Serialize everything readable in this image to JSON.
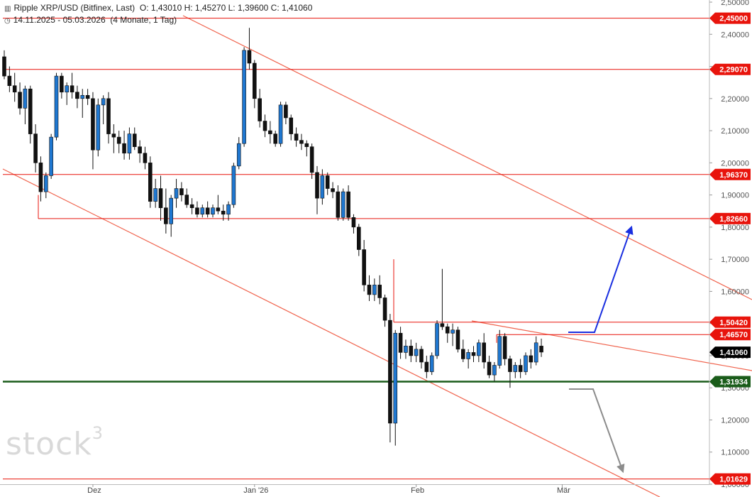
{
  "header": {
    "instrument": "Ripple XRP/USD (Bitfinex, Last)",
    "ohlc": "O: 1,43010  H: 1,45270  L: 1,39600  C: 1,41060",
    "range": "14.11.2025 - 05.03.2026",
    "period": "(4 Monate, 1 Tag)",
    "chart_icon": "chart-bars-icon",
    "time_icon": "clock-icon"
  },
  "watermark": {
    "text": "stock",
    "sup": "3"
  },
  "colors": {
    "up": "#1f77d0",
    "down": "#111111",
    "resistance": "#e8140c",
    "support": "#1a5c1a",
    "trend": "#f0644e",
    "arrow_up": "#1a2fe0",
    "arrow_down": "#8c8c8c",
    "price_tag": "#000000"
  },
  "chart_data": {
    "type": "candlestick",
    "ylim": [
      1.0,
      2.5
    ],
    "y_ticks": [
      "2,50000",
      "2,40000",
      "2,30000",
      "2,20000",
      "2,10000",
      "2,00000",
      "1,90000",
      "1,80000",
      "1,70000",
      "1,60000",
      "1,50000",
      "1,40000",
      "1,30000",
      "1,20000",
      "1,10000",
      "1,00000"
    ],
    "y_tick_values": [
      2.5,
      2.4,
      2.3,
      2.2,
      2.1,
      2.0,
      1.9,
      1.8,
      1.7,
      1.6,
      1.5,
      1.4,
      1.3,
      1.2,
      1.1,
      1.0
    ],
    "x_labels": [
      {
        "label": "Dez",
        "date": "2025-12-01"
      },
      {
        "label": "Jan '26",
        "date": "2026-01-01"
      },
      {
        "label": "Feb",
        "date": "2026-02-01"
      },
      {
        "label": "Mär",
        "date": "2026-03-01"
      }
    ],
    "levels": [
      {
        "label": "2,45000",
        "value": 2.45,
        "kind": "resistance"
      },
      {
        "label": "2,29070",
        "value": 2.2907,
        "kind": "resistance"
      },
      {
        "label": "1,96370",
        "value": 1.9637,
        "kind": "resistance"
      },
      {
        "label": "1,82660",
        "value": 1.8266,
        "kind": "resistance"
      },
      {
        "label": "1,50420",
        "value": 1.5042,
        "kind": "resistance"
      },
      {
        "label": "1,46570",
        "value": 1.4657,
        "kind": "resistance"
      },
      {
        "label": "1,31934",
        "value": 1.31934,
        "kind": "support"
      },
      {
        "label": "1,01629",
        "value": 1.01629,
        "kind": "resistance"
      }
    ],
    "last_price": {
      "label": "1,41060",
      "value": 1.4106
    },
    "candles": [
      {
        "o": 2.33,
        "h": 2.35,
        "l": 2.26,
        "c": 2.27
      },
      {
        "o": 2.27,
        "h": 2.3,
        "l": 2.22,
        "c": 2.24
      },
      {
        "o": 2.24,
        "h": 2.28,
        "l": 2.19,
        "c": 2.22
      },
      {
        "o": 2.22,
        "h": 2.25,
        "l": 2.15,
        "c": 2.17
      },
      {
        "o": 2.17,
        "h": 2.24,
        "l": 2.12,
        "c": 2.23
      },
      {
        "o": 2.23,
        "h": 2.24,
        "l": 2.06,
        "c": 2.09
      },
      {
        "o": 2.09,
        "h": 2.12,
        "l": 1.97,
        "c": 2.0
      },
      {
        "o": 2.0,
        "h": 2.02,
        "l": 1.88,
        "c": 1.91
      },
      {
        "o": 1.91,
        "h": 1.97,
        "l": 1.89,
        "c": 1.96
      },
      {
        "o": 1.96,
        "h": 2.09,
        "l": 1.95,
        "c": 2.08
      },
      {
        "o": 2.08,
        "h": 2.28,
        "l": 2.07,
        "c": 2.27
      },
      {
        "o": 2.27,
        "h": 2.28,
        "l": 2.2,
        "c": 2.22
      },
      {
        "o": 2.22,
        "h": 2.25,
        "l": 2.18,
        "c": 2.24
      },
      {
        "o": 2.24,
        "h": 2.28,
        "l": 2.2,
        "c": 2.22
      },
      {
        "o": 2.22,
        "h": 2.24,
        "l": 2.17,
        "c": 2.2
      },
      {
        "o": 2.2,
        "h": 2.23,
        "l": 2.14,
        "c": 2.21
      },
      {
        "o": 2.21,
        "h": 2.23,
        "l": 2.18,
        "c": 2.2
      },
      {
        "o": 2.2,
        "h": 2.22,
        "l": 1.98,
        "c": 2.04
      },
      {
        "o": 2.04,
        "h": 2.2,
        "l": 2.02,
        "c": 2.18
      },
      {
        "o": 2.18,
        "h": 2.21,
        "l": 2.12,
        "c": 2.2
      },
      {
        "o": 2.2,
        "h": 2.22,
        "l": 2.06,
        "c": 2.09
      },
      {
        "o": 2.09,
        "h": 2.12,
        "l": 2.03,
        "c": 2.08
      },
      {
        "o": 2.08,
        "h": 2.1,
        "l": 2.03,
        "c": 2.06
      },
      {
        "o": 2.06,
        "h": 2.1,
        "l": 2.01,
        "c": 2.03
      },
      {
        "o": 2.03,
        "h": 2.11,
        "l": 2.01,
        "c": 2.09
      },
      {
        "o": 2.09,
        "h": 2.11,
        "l": 2.04,
        "c": 2.05
      },
      {
        "o": 2.05,
        "h": 2.07,
        "l": 2.0,
        "c": 2.03
      },
      {
        "o": 2.03,
        "h": 2.05,
        "l": 1.98,
        "c": 2.0
      },
      {
        "o": 2.0,
        "h": 2.02,
        "l": 1.86,
        "c": 1.88
      },
      {
        "o": 1.88,
        "h": 1.95,
        "l": 1.86,
        "c": 1.92
      },
      {
        "o": 1.92,
        "h": 1.96,
        "l": 1.82,
        "c": 1.86
      },
      {
        "o": 1.86,
        "h": 1.92,
        "l": 1.78,
        "c": 1.81
      },
      {
        "o": 1.81,
        "h": 1.9,
        "l": 1.77,
        "c": 1.89
      },
      {
        "o": 1.89,
        "h": 1.95,
        "l": 1.86,
        "c": 1.92
      },
      {
        "o": 1.92,
        "h": 1.94,
        "l": 1.88,
        "c": 1.9
      },
      {
        "o": 1.9,
        "h": 1.92,
        "l": 1.86,
        "c": 1.87
      },
      {
        "o": 1.87,
        "h": 1.89,
        "l": 1.84,
        "c": 1.86
      },
      {
        "o": 1.86,
        "h": 1.88,
        "l": 1.83,
        "c": 1.84
      },
      {
        "o": 1.84,
        "h": 1.87,
        "l": 1.83,
        "c": 1.86
      },
      {
        "o": 1.86,
        "h": 1.88,
        "l": 1.83,
        "c": 1.84
      },
      {
        "o": 1.84,
        "h": 1.87,
        "l": 1.83,
        "c": 1.86
      },
      {
        "o": 1.86,
        "h": 1.9,
        "l": 1.84,
        "c": 1.85
      },
      {
        "o": 1.85,
        "h": 1.87,
        "l": 1.82,
        "c": 1.84
      },
      {
        "o": 1.84,
        "h": 1.88,
        "l": 1.82,
        "c": 1.87
      },
      {
        "o": 1.87,
        "h": 2.0,
        "l": 1.86,
        "c": 1.99
      },
      {
        "o": 1.99,
        "h": 2.08,
        "l": 1.98,
        "c": 2.06
      },
      {
        "o": 2.06,
        "h": 2.36,
        "l": 2.05,
        "c": 2.35
      },
      {
        "o": 2.35,
        "h": 2.42,
        "l": 2.29,
        "c": 2.31
      },
      {
        "o": 2.31,
        "h": 2.32,
        "l": 2.17,
        "c": 2.2
      },
      {
        "o": 2.2,
        "h": 2.23,
        "l": 2.11,
        "c": 2.13
      },
      {
        "o": 2.13,
        "h": 2.15,
        "l": 2.08,
        "c": 2.1
      },
      {
        "o": 2.1,
        "h": 2.13,
        "l": 2.06,
        "c": 2.09
      },
      {
        "o": 2.09,
        "h": 2.1,
        "l": 2.05,
        "c": 2.06
      },
      {
        "o": 2.06,
        "h": 2.19,
        "l": 2.05,
        "c": 2.18
      },
      {
        "o": 2.18,
        "h": 2.19,
        "l": 2.12,
        "c": 2.14
      },
      {
        "o": 2.14,
        "h": 2.15,
        "l": 2.07,
        "c": 2.09
      },
      {
        "o": 2.09,
        "h": 2.11,
        "l": 2.05,
        "c": 2.07
      },
      {
        "o": 2.07,
        "h": 2.09,
        "l": 2.04,
        "c": 2.06
      },
      {
        "o": 2.06,
        "h": 2.07,
        "l": 2.02,
        "c": 2.05
      },
      {
        "o": 2.05,
        "h": 2.06,
        "l": 1.95,
        "c": 1.97
      },
      {
        "o": 1.97,
        "h": 1.99,
        "l": 1.84,
        "c": 1.89
      },
      {
        "o": 1.89,
        "h": 1.98,
        "l": 1.87,
        "c": 1.96
      },
      {
        "o": 1.96,
        "h": 1.97,
        "l": 1.9,
        "c": 1.92
      },
      {
        "o": 1.92,
        "h": 1.94,
        "l": 1.89,
        "c": 1.91
      },
      {
        "o": 1.91,
        "h": 1.93,
        "l": 1.82,
        "c": 1.83
      },
      {
        "o": 1.83,
        "h": 1.92,
        "l": 1.82,
        "c": 1.91
      },
      {
        "o": 1.91,
        "h": 1.93,
        "l": 1.82,
        "c": 1.83
      },
      {
        "o": 1.83,
        "h": 1.84,
        "l": 1.78,
        "c": 1.8
      },
      {
        "o": 1.8,
        "h": 1.81,
        "l": 1.71,
        "c": 1.73
      },
      {
        "o": 1.73,
        "h": 1.76,
        "l": 1.6,
        "c": 1.62
      },
      {
        "o": 1.62,
        "h": 1.65,
        "l": 1.57,
        "c": 1.59
      },
      {
        "o": 1.59,
        "h": 1.64,
        "l": 1.57,
        "c": 1.62
      },
      {
        "o": 1.62,
        "h": 1.65,
        "l": 1.56,
        "c": 1.58
      },
      {
        "o": 1.58,
        "h": 1.59,
        "l": 1.49,
        "c": 1.51
      },
      {
        "o": 1.51,
        "h": 1.53,
        "l": 1.13,
        "c": 1.19
      },
      {
        "o": 1.19,
        "h": 1.48,
        "l": 1.12,
        "c": 1.47
      },
      {
        "o": 1.47,
        "h": 1.49,
        "l": 1.39,
        "c": 1.41
      },
      {
        "o": 1.41,
        "h": 1.45,
        "l": 1.39,
        "c": 1.43
      },
      {
        "o": 1.43,
        "h": 1.45,
        "l": 1.38,
        "c": 1.4
      },
      {
        "o": 1.4,
        "h": 1.44,
        "l": 1.38,
        "c": 1.42
      },
      {
        "o": 1.42,
        "h": 1.43,
        "l": 1.36,
        "c": 1.38
      },
      {
        "o": 1.38,
        "h": 1.4,
        "l": 1.33,
        "c": 1.35
      },
      {
        "o": 1.35,
        "h": 1.41,
        "l": 1.34,
        "c": 1.4
      },
      {
        "o": 1.4,
        "h": 1.51,
        "l": 1.39,
        "c": 1.5
      },
      {
        "o": 1.5,
        "h": 1.67,
        "l": 1.48,
        "c": 1.49
      },
      {
        "o": 1.49,
        "h": 1.5,
        "l": 1.44,
        "c": 1.47
      },
      {
        "o": 1.47,
        "h": 1.5,
        "l": 1.43,
        "c": 1.48
      },
      {
        "o": 1.48,
        "h": 1.49,
        "l": 1.41,
        "c": 1.42
      },
      {
        "o": 1.42,
        "h": 1.45,
        "l": 1.38,
        "c": 1.39
      },
      {
        "o": 1.39,
        "h": 1.42,
        "l": 1.36,
        "c": 1.41
      },
      {
        "o": 1.41,
        "h": 1.43,
        "l": 1.38,
        "c": 1.4
      },
      {
        "o": 1.4,
        "h": 1.45,
        "l": 1.38,
        "c": 1.44
      },
      {
        "o": 1.44,
        "h": 1.47,
        "l": 1.36,
        "c": 1.38
      },
      {
        "o": 1.38,
        "h": 1.4,
        "l": 1.33,
        "c": 1.34
      },
      {
        "o": 1.34,
        "h": 1.38,
        "l": 1.32,
        "c": 1.37
      },
      {
        "o": 1.37,
        "h": 1.48,
        "l": 1.36,
        "c": 1.46
      },
      {
        "o": 1.46,
        "h": 1.47,
        "l": 1.37,
        "c": 1.39
      },
      {
        "o": 1.39,
        "h": 1.4,
        "l": 1.3,
        "c": 1.35
      },
      {
        "o": 1.35,
        "h": 1.38,
        "l": 1.33,
        "c": 1.37
      },
      {
        "o": 1.37,
        "h": 1.39,
        "l": 1.33,
        "c": 1.35
      },
      {
        "o": 1.35,
        "h": 1.41,
        "l": 1.34,
        "c": 1.4
      },
      {
        "o": 1.4,
        "h": 1.42,
        "l": 1.36,
        "c": 1.38
      },
      {
        "o": 1.38,
        "h": 1.46,
        "l": 1.37,
        "c": 1.44
      },
      {
        "o": 1.43,
        "h": 1.453,
        "l": 1.396,
        "c": 1.411
      }
    ]
  }
}
